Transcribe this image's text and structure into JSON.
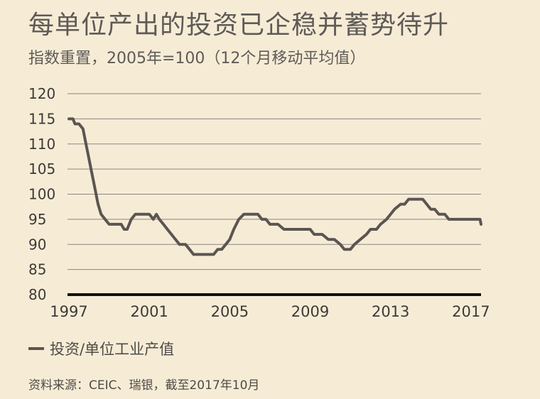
{
  "chart_data": {
    "type": "line",
    "title": "每单位产出的投资已企稳并蓄势待升",
    "subtitle": "指数重置，2005年=100（12个月移动平均值）",
    "xlabel": "",
    "ylabel": "",
    "xlim": [
      1997.0,
      2017.5
    ],
    "ylim": [
      80,
      120
    ],
    "yticks": [
      "120",
      "115",
      "110",
      "105",
      "100",
      "95",
      "90",
      "85",
      "80"
    ],
    "xticks": [
      "1997",
      "2001",
      "2005",
      "2009",
      "2013",
      "2017"
    ],
    "grid": "horizontal",
    "legend_position": "bottom-left",
    "series": [
      {
        "name": "投资/单位工业产值",
        "color": "#5b5552",
        "points": [
          [
            1997.0,
            115
          ],
          [
            1997.2,
            115
          ],
          [
            1997.3,
            114
          ],
          [
            1997.5,
            114
          ],
          [
            1997.7,
            113
          ],
          [
            1997.85,
            110
          ],
          [
            1998.0,
            107
          ],
          [
            1998.1,
            105
          ],
          [
            1998.3,
            101
          ],
          [
            1998.45,
            98
          ],
          [
            1998.6,
            96
          ],
          [
            1998.8,
            95
          ],
          [
            1999.0,
            94
          ],
          [
            1999.3,
            94
          ],
          [
            1999.6,
            94
          ],
          [
            1999.75,
            93
          ],
          [
            1999.9,
            93
          ],
          [
            2000.1,
            95
          ],
          [
            2000.3,
            96
          ],
          [
            2000.6,
            96
          ],
          [
            2001.0,
            96
          ],
          [
            2001.2,
            95
          ],
          [
            2001.35,
            96
          ],
          [
            2001.5,
            95
          ],
          [
            2001.7,
            94
          ],
          [
            2001.9,
            93
          ],
          [
            2002.1,
            92
          ],
          [
            2002.3,
            91
          ],
          [
            2002.5,
            90
          ],
          [
            2002.8,
            90
          ],
          [
            2003.0,
            89
          ],
          [
            2003.2,
            88
          ],
          [
            2003.6,
            88
          ],
          [
            2004.0,
            88
          ],
          [
            2004.2,
            88
          ],
          [
            2004.4,
            89
          ],
          [
            2004.6,
            89
          ],
          [
            2004.8,
            90
          ],
          [
            2005.0,
            91
          ],
          [
            2005.2,
            93
          ],
          [
            2005.45,
            95
          ],
          [
            2005.7,
            96
          ],
          [
            2006.1,
            96
          ],
          [
            2006.4,
            96
          ],
          [
            2006.6,
            95
          ],
          [
            2006.8,
            95
          ],
          [
            2007.0,
            94
          ],
          [
            2007.4,
            94
          ],
          [
            2007.7,
            93
          ],
          [
            2008.0,
            93
          ],
          [
            2008.5,
            93
          ],
          [
            2009.0,
            93
          ],
          [
            2009.2,
            92
          ],
          [
            2009.6,
            92
          ],
          [
            2009.9,
            91
          ],
          [
            2010.2,
            91
          ],
          [
            2010.5,
            90
          ],
          [
            2010.7,
            89
          ],
          [
            2011.0,
            89
          ],
          [
            2011.2,
            90
          ],
          [
            2011.5,
            91
          ],
          [
            2011.8,
            92
          ],
          [
            2012.0,
            93
          ],
          [
            2012.3,
            93
          ],
          [
            2012.5,
            94
          ],
          [
            2012.8,
            95
          ],
          [
            2013.0,
            96
          ],
          [
            2013.2,
            97
          ],
          [
            2013.5,
            98
          ],
          [
            2013.7,
            98
          ],
          [
            2013.9,
            99
          ],
          [
            2014.2,
            99
          ],
          [
            2014.6,
            99
          ],
          [
            2014.8,
            98
          ],
          [
            2015.0,
            97
          ],
          [
            2015.2,
            97
          ],
          [
            2015.4,
            96
          ],
          [
            2015.7,
            96
          ],
          [
            2015.9,
            95
          ],
          [
            2016.3,
            95
          ],
          [
            2016.8,
            95
          ],
          [
            2017.2,
            95
          ],
          [
            2017.45,
            95
          ],
          [
            2017.5,
            94
          ]
        ]
      }
    ]
  },
  "legend": {
    "label": "投资/单位工业产值"
  },
  "source": "资料来源：CEIC、瑞银，截至2017年10月"
}
